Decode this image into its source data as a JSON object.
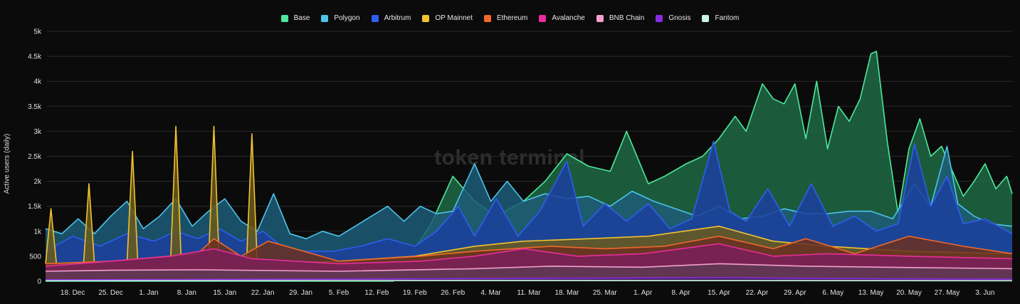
{
  "watermark": "token terminal",
  "chart_data": {
    "type": "area",
    "ylabel": "Active users (daily)",
    "ylim": [
      0,
      5000
    ],
    "y_ticks": [
      0,
      500,
      1000,
      1500,
      2000,
      2500,
      3000,
      3500,
      4000,
      4500,
      5000
    ],
    "y_tick_labels": [
      "0",
      "500",
      "1k",
      "1.5k",
      "2k",
      "2.5k",
      "3k",
      "3.5k",
      "4k",
      "4.5k",
      "5k"
    ],
    "x_tick_labels": [
      "18. Dec",
      "25. Dec",
      "1. Jan",
      "8. Jan",
      "15. Jan",
      "22. Jan",
      "29. Jan",
      "5. Feb",
      "12. Feb",
      "19. Feb",
      "26. Feb",
      "4. Mar",
      "11. Mar",
      "18. Mar",
      "25. Mar",
      "1. Apr",
      "8. Apr",
      "15. Apr",
      "22. Apr",
      "29. Apr",
      "6. May",
      "13. May",
      "20. May",
      "27. May",
      "3. Jun"
    ],
    "x_start": "2023-12-13",
    "x_end": "2024-06-08",
    "grid": true,
    "legend_position": "top-center",
    "series": [
      {
        "name": "Base",
        "color": "#4ce89b",
        "fill": "#1f6a45",
        "points": [
          [
            "2023-12-13",
            0
          ],
          [
            "2024-02-15",
            0
          ],
          [
            "2024-02-22",
            1150
          ],
          [
            "2024-02-26",
            2100
          ],
          [
            "2024-03-01",
            1600
          ],
          [
            "2024-03-05",
            1300
          ],
          [
            "2024-03-10",
            1600
          ],
          [
            "2024-03-14",
            2000
          ],
          [
            "2024-03-18",
            2550
          ],
          [
            "2024-03-22",
            2300
          ],
          [
            "2024-03-26",
            2200
          ],
          [
            "2024-03-29",
            3000
          ],
          [
            "2024-04-02",
            1950
          ],
          [
            "2024-04-05",
            2100
          ],
          [
            "2024-04-09",
            2350
          ],
          [
            "2024-04-12",
            2500
          ],
          [
            "2024-04-15",
            2850
          ],
          [
            "2024-04-18",
            3300
          ],
          [
            "2024-04-20",
            3000
          ],
          [
            "2024-04-23",
            3950
          ],
          [
            "2024-04-25",
            3650
          ],
          [
            "2024-04-27",
            3550
          ],
          [
            "2024-04-29",
            3950
          ],
          [
            "2024-05-01",
            2850
          ],
          [
            "2024-05-03",
            4000
          ],
          [
            "2024-05-05",
            2650
          ],
          [
            "2024-05-07",
            3500
          ],
          [
            "2024-05-09",
            3200
          ],
          [
            "2024-05-11",
            3650
          ],
          [
            "2024-05-13",
            4550
          ],
          [
            "2024-05-14",
            4600
          ],
          [
            "2024-05-16",
            2800
          ],
          [
            "2024-05-18",
            1350
          ],
          [
            "2024-05-20",
            2650
          ],
          [
            "2024-05-22",
            3250
          ],
          [
            "2024-05-24",
            2500
          ],
          [
            "2024-05-26",
            2700
          ],
          [
            "2024-05-28",
            2200
          ],
          [
            "2024-05-30",
            1700
          ],
          [
            "2024-06-01",
            2000
          ],
          [
            "2024-06-03",
            2350
          ],
          [
            "2024-06-05",
            1850
          ],
          [
            "2024-06-07",
            2100
          ],
          [
            "2024-06-08",
            1750
          ]
        ]
      },
      {
        "name": "Polygon",
        "color": "#4cc4ec",
        "fill": "#1d5d78",
        "points": [
          [
            "2023-12-13",
            1050
          ],
          [
            "2023-12-16",
            950
          ],
          [
            "2023-12-19",
            1250
          ],
          [
            "2023-12-22",
            950
          ],
          [
            "2023-12-25",
            1300
          ],
          [
            "2023-12-28",
            1600
          ],
          [
            "2023-12-31",
            1050
          ],
          [
            "2024-01-03",
            1300
          ],
          [
            "2024-01-06",
            1650
          ],
          [
            "2024-01-09",
            1100
          ],
          [
            "2024-01-12",
            1400
          ],
          [
            "2024-01-15",
            1650
          ],
          [
            "2024-01-18",
            1200
          ],
          [
            "2024-01-21",
            1000
          ],
          [
            "2024-01-24",
            1750
          ],
          [
            "2024-01-27",
            950
          ],
          [
            "2024-01-30",
            850
          ],
          [
            "2024-02-02",
            1000
          ],
          [
            "2024-02-05",
            900
          ],
          [
            "2024-02-08",
            1100
          ],
          [
            "2024-02-11",
            1300
          ],
          [
            "2024-02-14",
            1500
          ],
          [
            "2024-02-17",
            1200
          ],
          [
            "2024-02-20",
            1500
          ],
          [
            "2024-02-23",
            1350
          ],
          [
            "2024-02-26",
            1400
          ],
          [
            "2024-03-01",
            2350
          ],
          [
            "2024-03-04",
            1600
          ],
          [
            "2024-03-07",
            2000
          ],
          [
            "2024-03-10",
            1600
          ],
          [
            "2024-03-14",
            1750
          ],
          [
            "2024-03-18",
            1650
          ],
          [
            "2024-03-22",
            1700
          ],
          [
            "2024-03-26",
            1500
          ],
          [
            "2024-03-30",
            1800
          ],
          [
            "2024-04-03",
            1600
          ],
          [
            "2024-04-07",
            1450
          ],
          [
            "2024-04-11",
            1300
          ],
          [
            "2024-04-15",
            1500
          ],
          [
            "2024-04-19",
            1250
          ],
          [
            "2024-04-23",
            1300
          ],
          [
            "2024-04-27",
            1450
          ],
          [
            "2024-05-01",
            1350
          ],
          [
            "2024-05-05",
            1350
          ],
          [
            "2024-05-09",
            1400
          ],
          [
            "2024-05-13",
            1400
          ],
          [
            "2024-05-17",
            1250
          ],
          [
            "2024-05-21",
            1950
          ],
          [
            "2024-05-24",
            1500
          ],
          [
            "2024-05-27",
            2700
          ],
          [
            "2024-05-29",
            1550
          ],
          [
            "2024-06-01",
            1300
          ],
          [
            "2024-06-04",
            1150
          ],
          [
            "2024-06-08",
            1100
          ]
        ]
      },
      {
        "name": "Arbitrum",
        "color": "#2d5ef0",
        "fill": "#1c3f9e",
        "points": [
          [
            "2023-12-13",
            600
          ],
          [
            "2023-12-18",
            900
          ],
          [
            "2023-12-23",
            700
          ],
          [
            "2023-12-28",
            950
          ],
          [
            "2024-01-02",
            800
          ],
          [
            "2024-01-06",
            1000
          ],
          [
            "2024-01-10",
            850
          ],
          [
            "2024-01-14",
            1050
          ],
          [
            "2024-01-18",
            800
          ],
          [
            "2024-01-22",
            1000
          ],
          [
            "2024-01-26",
            650
          ],
          [
            "2024-01-30",
            600
          ],
          [
            "2024-02-04",
            600
          ],
          [
            "2024-02-09",
            700
          ],
          [
            "2024-02-14",
            850
          ],
          [
            "2024-02-19",
            700
          ],
          [
            "2024-02-23",
            1000
          ],
          [
            "2024-02-27",
            1500
          ],
          [
            "2024-03-01",
            900
          ],
          [
            "2024-03-05",
            1650
          ],
          [
            "2024-03-09",
            900
          ],
          [
            "2024-03-13",
            1400
          ],
          [
            "2024-03-18",
            2400
          ],
          [
            "2024-03-21",
            1100
          ],
          [
            "2024-03-25",
            1550
          ],
          [
            "2024-03-29",
            1200
          ],
          [
            "2024-04-02",
            1550
          ],
          [
            "2024-04-06",
            1050
          ],
          [
            "2024-04-10",
            1250
          ],
          [
            "2024-04-14",
            2800
          ],
          [
            "2024-04-17",
            1400
          ],
          [
            "2024-04-20",
            1200
          ],
          [
            "2024-04-24",
            1850
          ],
          [
            "2024-04-28",
            1100
          ],
          [
            "2024-05-02",
            1950
          ],
          [
            "2024-05-06",
            1100
          ],
          [
            "2024-05-10",
            1300
          ],
          [
            "2024-05-14",
            1000
          ],
          [
            "2024-05-18",
            1150
          ],
          [
            "2024-05-21",
            2750
          ],
          [
            "2024-05-24",
            1500
          ],
          [
            "2024-05-27",
            2100
          ],
          [
            "2024-05-30",
            1150
          ],
          [
            "2024-06-03",
            1250
          ],
          [
            "2024-06-08",
            950
          ]
        ]
      },
      {
        "name": "OP Mainnet",
        "color": "#f2c230",
        "fill": "#6a5b1c",
        "points": [
          [
            "2023-12-13",
            350
          ],
          [
            "2023-12-14",
            1450
          ],
          [
            "2023-12-15",
            350
          ],
          [
            "2023-12-20",
            350
          ],
          [
            "2023-12-21",
            1950
          ],
          [
            "2023-12-22",
            350
          ],
          [
            "2023-12-28",
            350
          ],
          [
            "2023-12-29",
            2600
          ],
          [
            "2023-12-30",
            350
          ],
          [
            "2024-01-05",
            350
          ],
          [
            "2024-01-06",
            3100
          ],
          [
            "2024-01-07",
            350
          ],
          [
            "2024-01-12",
            350
          ],
          [
            "2024-01-13",
            3100
          ],
          [
            "2024-01-14",
            350
          ],
          [
            "2024-01-19",
            350
          ],
          [
            "2024-01-20",
            2950
          ],
          [
            "2024-01-21",
            350
          ],
          [
            "2024-02-05",
            400
          ],
          [
            "2024-02-19",
            500
          ],
          [
            "2024-03-01",
            700
          ],
          [
            "2024-03-10",
            800
          ],
          [
            "2024-03-22",
            850
          ],
          [
            "2024-04-02",
            900
          ],
          [
            "2024-04-15",
            1100
          ],
          [
            "2024-04-25",
            800
          ],
          [
            "2024-05-05",
            700
          ],
          [
            "2024-05-20",
            600
          ],
          [
            "2024-06-08",
            550
          ]
        ]
      },
      {
        "name": "Ethereum",
        "color": "#f0682a",
        "fill": "#6a3020",
        "points": [
          [
            "2023-12-13",
            350
          ],
          [
            "2023-12-25",
            400
          ],
          [
            "2024-01-10",
            550
          ],
          [
            "2024-01-13",
            850
          ],
          [
            "2024-01-18",
            500
          ],
          [
            "2024-01-23",
            800
          ],
          [
            "2024-02-05",
            400
          ],
          [
            "2024-02-20",
            500
          ],
          [
            "2024-03-01",
            600
          ],
          [
            "2024-03-15",
            700
          ],
          [
            "2024-03-25",
            650
          ],
          [
            "2024-04-05",
            700
          ],
          [
            "2024-04-15",
            900
          ],
          [
            "2024-04-25",
            650
          ],
          [
            "2024-05-01",
            850
          ],
          [
            "2024-05-10",
            550
          ],
          [
            "2024-05-20",
            900
          ],
          [
            "2024-05-30",
            700
          ],
          [
            "2024-06-08",
            550
          ]
        ]
      },
      {
        "name": "Avalanche",
        "color": "#ea2c9c",
        "fill": "#7a1e58",
        "points": [
          [
            "2023-12-13",
            300
          ],
          [
            "2023-12-25",
            400
          ],
          [
            "2024-01-05",
            500
          ],
          [
            "2024-01-13",
            650
          ],
          [
            "2024-01-20",
            450
          ],
          [
            "2024-02-05",
            350
          ],
          [
            "2024-02-20",
            400
          ],
          [
            "2024-03-01",
            500
          ],
          [
            "2024-03-10",
            650
          ],
          [
            "2024-03-20",
            500
          ],
          [
            "2024-04-01",
            550
          ],
          [
            "2024-04-15",
            750
          ],
          [
            "2024-04-25",
            500
          ],
          [
            "2024-05-05",
            550
          ],
          [
            "2024-05-20",
            500
          ],
          [
            "2024-06-08",
            450
          ]
        ]
      },
      {
        "name": "BNB Chain",
        "color": "#f3a0cf",
        "fill": "#5e3a52",
        "points": [
          [
            "2023-12-13",
            200
          ],
          [
            "2023-12-25",
            220
          ],
          [
            "2024-01-10",
            230
          ],
          [
            "2024-02-05",
            200
          ],
          [
            "2024-03-01",
            250
          ],
          [
            "2024-03-15",
            300
          ],
          [
            "2024-04-01",
            280
          ],
          [
            "2024-04-15",
            350
          ],
          [
            "2024-05-01",
            300
          ],
          [
            "2024-05-15",
            280
          ],
          [
            "2024-06-08",
            250
          ]
        ]
      },
      {
        "name": "Gnosis",
        "color": "#8a2be2",
        "fill": "#3c1a5e",
        "points": [
          [
            "2023-12-13",
            30
          ],
          [
            "2024-02-01",
            40
          ],
          [
            "2024-03-15",
            60
          ],
          [
            "2024-04-15",
            70
          ],
          [
            "2024-05-15",
            50
          ],
          [
            "2024-06-08",
            40
          ]
        ]
      },
      {
        "name": "Fantom",
        "color": "#c9f6e2",
        "fill": "#455a50",
        "points": [
          [
            "2023-12-13",
            10
          ],
          [
            "2024-03-01",
            15
          ],
          [
            "2024-06-08",
            10
          ]
        ]
      }
    ]
  }
}
